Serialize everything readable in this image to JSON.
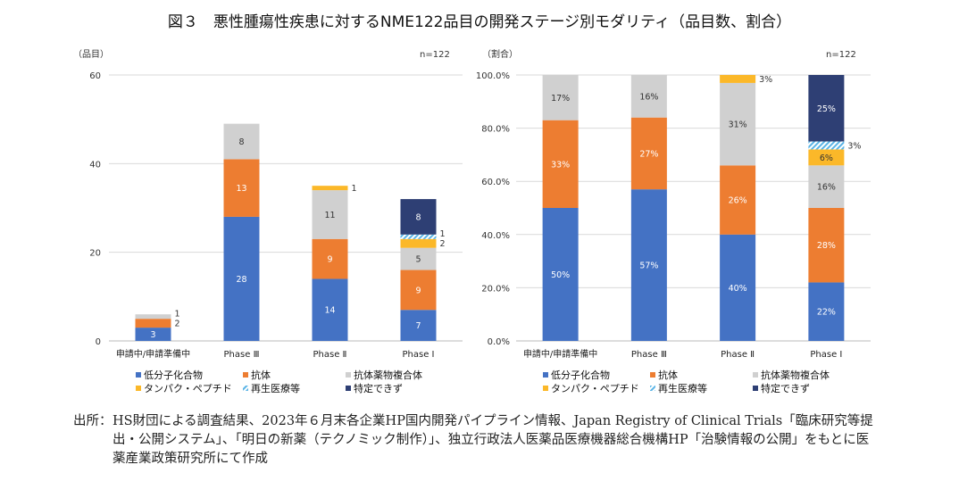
{
  "title": "図３　悪性腫瘍性疾患に対するNME122品目の開発ステージ別モダリティ（品目数、割合）",
  "source_label": "出所：",
  "source_text": "HS財団による調査結果、2023年６月末各企業HP国内開発パイプライン情報、Japan Registry of Clinical Trials「臨床研究等提出・公開システム」、「明日の新薬（テクノミック制作）」、独立行政法人医薬品医療機器総合機構HP「治験情報の公開」をもとに医薬産業政策研究所にて作成",
  "chart_data": [
    {
      "type": "bar",
      "stacked": true,
      "ylabel": "（品目）",
      "annotation": "n=122",
      "ylim": [
        0,
        60
      ],
      "yticks": [
        "0",
        "20",
        "40",
        "60"
      ],
      "ytick_values": [
        0,
        20,
        40,
        60
      ],
      "grid": true,
      "legend_position": "bottom",
      "categories": [
        "申請中/申請準備中",
        "Phase Ⅲ",
        "Phase Ⅱ",
        "Phase Ⅰ"
      ],
      "series": [
        {
          "name": "低分子化合物",
          "color": "#4472c4",
          "values": [
            3,
            28,
            14,
            7
          ]
        },
        {
          "name": "抗体",
          "color": "#ed7d31",
          "values": [
            2,
            13,
            9,
            9
          ]
        },
        {
          "name": "抗体薬物複合体",
          "color": "#d0d0d0",
          "values": [
            1,
            8,
            11,
            5
          ]
        },
        {
          "name": "タンパク・ペプチド",
          "color": "#fbb829",
          "values": [
            0,
            0,
            1,
            2
          ]
        },
        {
          "name": "再生医療等",
          "color": "#5ab4e6",
          "pattern": "hatch",
          "values": [
            0,
            0,
            0,
            1
          ]
        },
        {
          "name": "特定できず",
          "color": "#2e3f74",
          "values": [
            0,
            0,
            0,
            8
          ]
        }
      ]
    },
    {
      "type": "bar",
      "stacked": true,
      "ylabel": "（割合）",
      "annotation": "n=122",
      "ylim": [
        0,
        100
      ],
      "yticks": [
        "0.0%",
        "20.0%",
        "40.0%",
        "60.0%",
        "80.0%",
        "100.0%"
      ],
      "ytick_values": [
        0,
        20,
        40,
        60,
        80,
        100
      ],
      "grid": true,
      "legend_position": "bottom",
      "categories": [
        "申請中/申請準備中",
        "Phase Ⅲ",
        "Phase Ⅱ",
        "Phase Ⅰ"
      ],
      "series": [
        {
          "name": "低分子化合物",
          "color": "#4472c4",
          "values": [
            50,
            57,
            40,
            22
          ]
        },
        {
          "name": "抗体",
          "color": "#ed7d31",
          "values": [
            33,
            27,
            26,
            28
          ]
        },
        {
          "name": "抗体薬物複合体",
          "color": "#d0d0d0",
          "values": [
            17,
            16,
            31,
            16
          ]
        },
        {
          "name": "タンパク・ペプチド",
          "color": "#fbb829",
          "values": [
            0,
            0,
            3,
            6
          ]
        },
        {
          "name": "再生医療等",
          "color": "#5ab4e6",
          "pattern": "hatch",
          "values": [
            0,
            0,
            0,
            3
          ]
        },
        {
          "name": "特定できず",
          "color": "#2e3f74",
          "values": [
            0,
            0,
            0,
            25
          ]
        }
      ],
      "value_suffix": "%"
    }
  ]
}
